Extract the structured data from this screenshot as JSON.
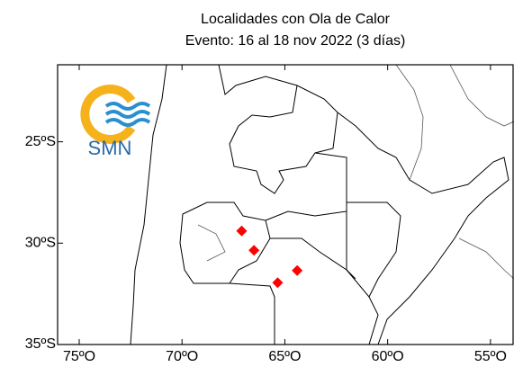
{
  "chart_data": {
    "type": "scatter",
    "title": "Localidades con Ola de Calor",
    "subtitle": "Evento: 16 al 18 nov 2022 (3 días)",
    "logo_text": "SMN",
    "xlim": [
      -76.05,
      -53.9
    ],
    "ylim": [
      -35,
      -21.2
    ],
    "xticks": [
      {
        "value": -75,
        "label": "75ºO"
      },
      {
        "value": -70,
        "label": "70ºO"
      },
      {
        "value": -65,
        "label": "65ºO"
      },
      {
        "value": -60,
        "label": "60ºO"
      },
      {
        "value": -55,
        "label": "55ºO"
      }
    ],
    "yticks": [
      {
        "value": -25,
        "label": "25ºS"
      },
      {
        "value": -30,
        "label": "30ºS"
      },
      {
        "value": -35,
        "label": "35ºS"
      }
    ],
    "series": [
      {
        "color": "#ff0000",
        "x": [
          -67.1,
          -66.5,
          -64.4,
          -65.35
        ],
        "values": [
          -29.4,
          -30.35,
          -31.35,
          -31.95
        ]
      }
    ]
  }
}
